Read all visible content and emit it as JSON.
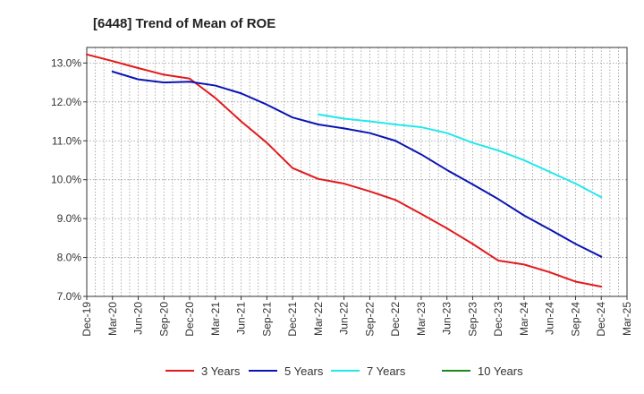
{
  "chart_data": {
    "type": "line",
    "title": "[6448]  Trend of Mean of ROE",
    "xlabel": "",
    "ylabel": "",
    "ylim": [
      7.0,
      13.4
    ],
    "yticks": [
      7.0,
      8.0,
      9.0,
      10.0,
      11.0,
      12.0,
      13.0
    ],
    "ytick_labels": [
      "7.0%",
      "8.0%",
      "9.0%",
      "10.0%",
      "11.0%",
      "12.0%",
      "13.0%"
    ],
    "x_labels": [
      "Dec-19",
      "Mar-20",
      "Jun-20",
      "Sep-20",
      "Dec-20",
      "Mar-21",
      "Jun-21",
      "Sep-21",
      "Dec-21",
      "Mar-22",
      "Jun-22",
      "Sep-22",
      "Dec-22",
      "Mar-23",
      "Jun-23",
      "Sep-23",
      "Dec-23",
      "Mar-24",
      "Jun-24",
      "Sep-24",
      "Dec-24",
      "Mar-25"
    ],
    "grid": true,
    "legend_position": "bottom",
    "series": [
      {
        "name": "3 Years",
        "color": "#e31a1c",
        "start_index": 0,
        "values": [
          13.22,
          13.05,
          12.87,
          12.7,
          12.6,
          12.1,
          11.5,
          10.95,
          10.3,
          10.02,
          9.9,
          9.7,
          9.48,
          9.12,
          8.75,
          8.35,
          7.92,
          7.82,
          7.62,
          7.38,
          7.25
        ]
      },
      {
        "name": "5 Years",
        "color": "#0a14b4",
        "start_index": 1,
        "values": [
          12.78,
          12.58,
          12.5,
          12.52,
          12.42,
          12.22,
          11.93,
          11.6,
          11.42,
          11.32,
          11.2,
          11.0,
          10.65,
          10.25,
          9.88,
          9.5,
          9.08,
          8.72,
          8.35,
          8.02
        ]
      },
      {
        "name": "7 Years",
        "color": "#22e8ec",
        "start_index": 9,
        "values": [
          11.68,
          11.57,
          11.5,
          11.42,
          11.35,
          11.2,
          10.95,
          10.75,
          10.5,
          10.2,
          9.9,
          9.55
        ]
      },
      {
        "name": "10 Years",
        "color": "#1a8a1a",
        "start_index": 0,
        "values": []
      }
    ]
  }
}
